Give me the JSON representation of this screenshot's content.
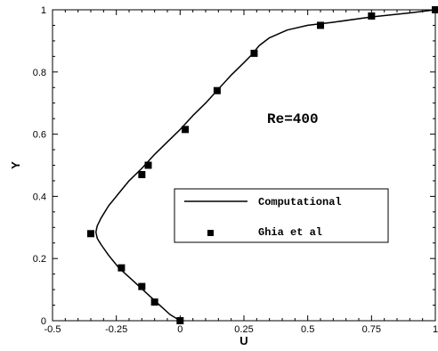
{
  "chart_data": {
    "type": "line",
    "xlabel": "U",
    "ylabel": "Y",
    "xlim": [
      -0.5,
      1
    ],
    "ylim": [
      0,
      1
    ],
    "xticks": [
      -0.5,
      -0.25,
      0,
      0.25,
      0.5,
      0.75,
      1
    ],
    "xtick_labels": [
      "-0.5",
      "-0.25",
      "0",
      "0.25",
      "0.5",
      "0.75",
      "1"
    ],
    "yticks": [
      0,
      0.2,
      0.4,
      0.6,
      0.8,
      1
    ],
    "ytick_labels": [
      "0",
      "0.2",
      "0.4",
      "0.6",
      "0.8",
      "1"
    ],
    "annotation": "Re=400",
    "grid": false,
    "legend_position": "center-right",
    "series": [
      {
        "name": "Computational",
        "style": "line",
        "x": [
          0,
          -0.04,
          -0.08,
          -0.12,
          -0.16,
          -0.2,
          -0.24,
          -0.28,
          -0.31,
          -0.325,
          -0.33,
          -0.325,
          -0.31,
          -0.28,
          -0.24,
          -0.2,
          -0.15,
          -0.1,
          -0.05,
          0,
          0.05,
          0.1,
          0.15,
          0.2,
          0.25,
          0.28,
          0.31,
          0.35,
          0.42,
          0.5,
          0.6,
          0.75,
          0.9,
          1.0
        ],
        "y": [
          0,
          0.02,
          0.05,
          0.08,
          0.11,
          0.14,
          0.17,
          0.21,
          0.245,
          0.265,
          0.285,
          0.305,
          0.33,
          0.37,
          0.41,
          0.45,
          0.49,
          0.535,
          0.575,
          0.615,
          0.66,
          0.7,
          0.745,
          0.79,
          0.83,
          0.855,
          0.885,
          0.91,
          0.935,
          0.95,
          0.96,
          0.977,
          0.99,
          1.0
        ]
      },
      {
        "name": "Ghia et al",
        "style": "markers",
        "x": [
          0,
          -0.1,
          -0.15,
          -0.23,
          -0.35,
          -0.15,
          -0.125,
          0.02,
          0.145,
          0.29,
          0.55,
          0.75,
          1.0
        ],
        "y": [
          0,
          0.06,
          0.11,
          0.17,
          0.28,
          0.47,
          0.5,
          0.615,
          0.74,
          0.86,
          0.95,
          0.98,
          1.0
        ]
      }
    ]
  }
}
